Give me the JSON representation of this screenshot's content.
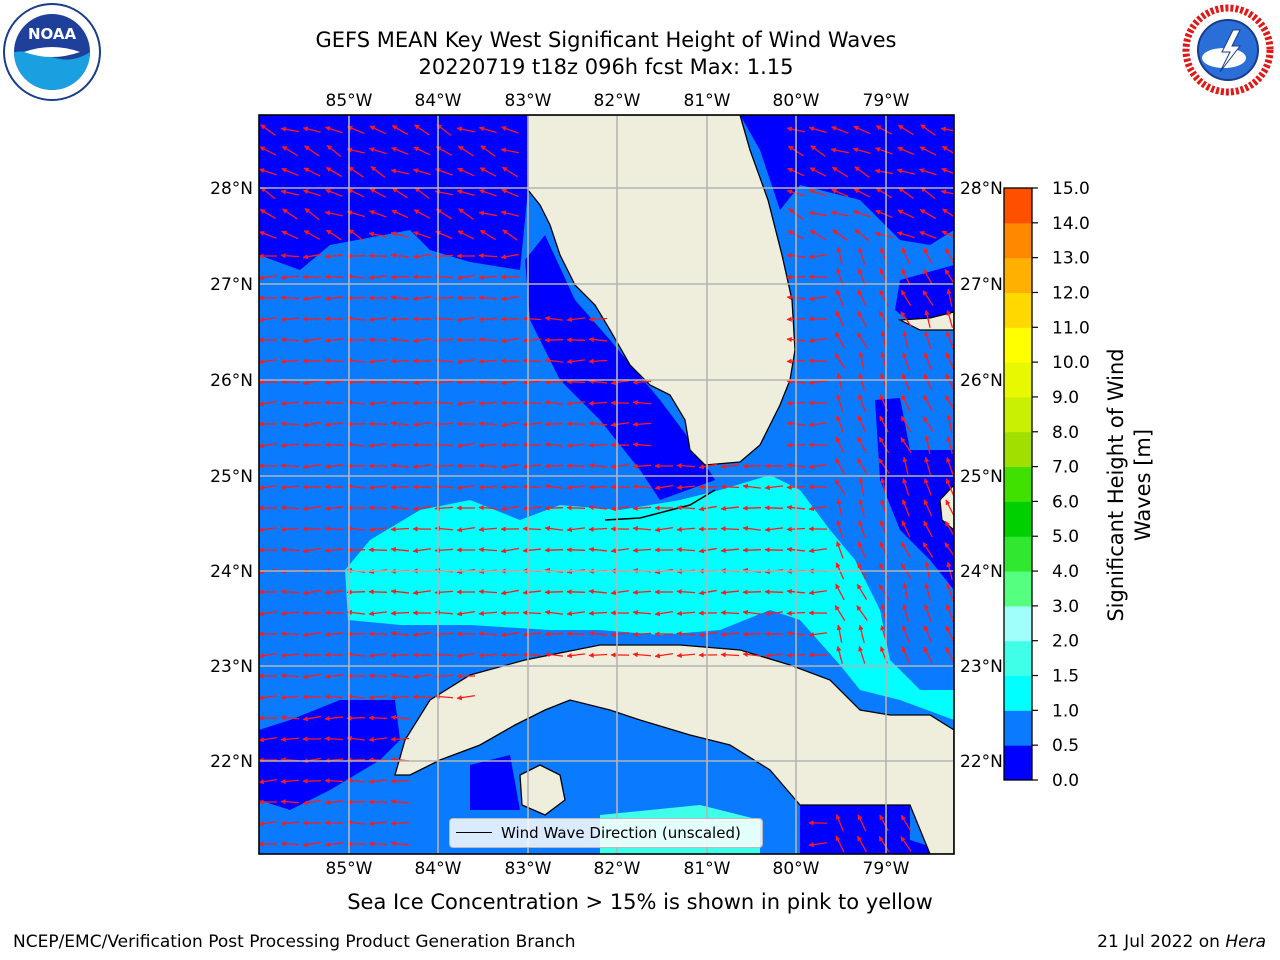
{
  "title": {
    "line1": "GEFS MEAN Key West Significant Height of Wind Waves",
    "line2": "20220719 t18z 096h fcst   Max: 1.15"
  },
  "axes": {
    "lon_labels_top": [
      "85°W",
      "84°W",
      "83°W",
      "82°W",
      "81°W",
      "80°W",
      "79°W"
    ],
    "lon_labels_bottom": [
      "85°W",
      "84°W",
      "83°W",
      "82°W",
      "81°W",
      "80°W",
      "79°W"
    ],
    "lat_labels_left": [
      "28°N",
      "27°N",
      "26°N",
      "25°N",
      "24°N",
      "23°N",
      "22°N"
    ],
    "lat_labels_right": [
      "28°N",
      "27°N",
      "26°N",
      "25°N",
      "24°N",
      "23°N",
      "22°N"
    ]
  },
  "colorbar": {
    "label_line1": "Significant Height of Wind",
    "label_line2": "Waves [m]",
    "ticks": [
      "15.0",
      "14.0",
      "13.0",
      "12.0",
      "11.0",
      "10.0",
      "9.0",
      "8.0",
      "7.0",
      "6.0",
      "5.0",
      "4.0",
      "3.0",
      "2.0",
      "1.5",
      "1.0",
      "0.5",
      "0.0"
    ],
    "colors": [
      "#0000ff",
      "#0a7aff",
      "#00ffff",
      "#40ffe8",
      "#a0fff8",
      "#55ff80",
      "#30e830",
      "#00d000",
      "#40e000",
      "#a0e000",
      "#c8f000",
      "#e8f800",
      "#ffff00",
      "#ffd800",
      "#ffb000",
      "#ff8800",
      "#ff5000",
      "#ff1800",
      "#ff0000"
    ]
  },
  "legend": {
    "label": "Wind Wave Direction (unscaled)"
  },
  "caption": "Sea Ice Concentration > 15% is shown in pink to yellow",
  "footer": {
    "left": "NCEP/EMC/Verification Post Processing Product Generation Branch",
    "right_date": "21 Jul 2022 on ",
    "right_host": "Hera"
  },
  "logos": {
    "noaa": "NOAA",
    "nws": "NATIONAL WEATHER SERVICE",
    "noaa_ring": "NATIONAL OCEANIC AND ATMOSPHERIC ADMINISTRATION"
  }
}
